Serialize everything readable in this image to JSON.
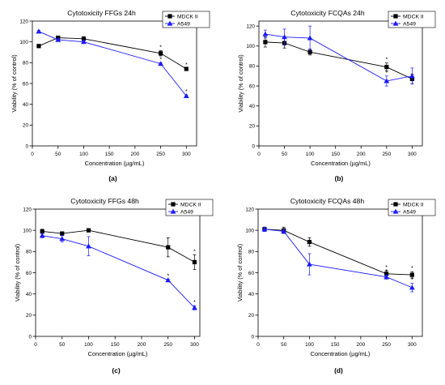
{
  "figure": {
    "panel_labels": [
      "(a)",
      "(b)",
      "(c)",
      "(d)"
    ]
  },
  "chart_data": [
    {
      "type": "line",
      "title": "Cytotoxicity FFGs 24h",
      "xlabel": "Concentration (µg/mL)",
      "ylabel": "Viability (% of control)",
      "xlim": [
        0,
        320
      ],
      "ylim": [
        0,
        120
      ],
      "xticks": [
        0,
        50,
        100,
        150,
        200,
        250,
        300
      ],
      "yticks": [
        0,
        20,
        40,
        60,
        80,
        100,
        120
      ],
      "legend": "top-right",
      "series": [
        {
          "name": "MDCK II",
          "marker": "square",
          "color": "#000000",
          "x": [
            12.5,
            50,
            100,
            250,
            300
          ],
          "y": [
            96,
            104,
            103,
            89,
            74
          ],
          "err": [
            1,
            1.5,
            2,
            2.5,
            1
          ],
          "annot": [
            "",
            "",
            "",
            "*",
            "*"
          ]
        },
        {
          "name": "A549",
          "marker": "triangle",
          "color": "#1a1aff",
          "x": [
            12.5,
            50,
            100,
            250,
            300
          ],
          "y": [
            110,
            102,
            100,
            79,
            48
          ],
          "err": [
            1,
            1,
            1.5,
            1,
            1
          ],
          "annot": [
            "",
            "",
            "",
            "*",
            "*"
          ]
        }
      ]
    },
    {
      "type": "line",
      "title": "Cytotoxicity FCQAs 24h",
      "xlabel": "Concentration (µg/mL)",
      "ylabel": "Viability (% of control)",
      "xlim": [
        0,
        320
      ],
      "ylim": [
        0,
        125
      ],
      "xticks": [
        0,
        50,
        100,
        150,
        200,
        250,
        300
      ],
      "yticks": [
        0,
        20,
        40,
        60,
        80,
        100,
        120
      ],
      "legend": "top-right",
      "series": [
        {
          "name": "MDCK II",
          "marker": "square",
          "color": "#000000",
          "x": [
            12.5,
            50,
            100,
            250,
            300
          ],
          "y": [
            104,
            103,
            94,
            79,
            67
          ],
          "err": [
            5,
            5,
            3,
            4,
            5
          ],
          "annot": [
            "",
            "",
            "",
            "*",
            ""
          ]
        },
        {
          "name": "A549",
          "marker": "triangle",
          "color": "#1a1aff",
          "x": [
            12.5,
            50,
            100,
            250,
            300
          ],
          "y": [
            112,
            109,
            108,
            65,
            70
          ],
          "err": [
            4,
            8,
            12,
            5,
            8
          ],
          "annot": [
            "",
            "",
            "",
            "*",
            ""
          ]
        }
      ]
    },
    {
      "type": "line",
      "title": "Cytotoxicity FFGs 48h",
      "xlabel": "Concentration (µg/mL)",
      "ylabel": "Viability (% of control)",
      "xlim": [
        0,
        310
      ],
      "ylim": [
        0,
        120
      ],
      "xticks": [
        0,
        50,
        100,
        150,
        200,
        250,
        300
      ],
      "yticks": [
        0,
        20,
        40,
        60,
        80,
        100,
        120
      ],
      "legend": "top-right",
      "series": [
        {
          "name": "MDCK II",
          "marker": "square",
          "color": "#000000",
          "x": [
            12.5,
            50,
            100,
            250,
            300
          ],
          "y": [
            99,
            97,
            100,
            84,
            70
          ],
          "err": [
            2,
            1,
            1,
            9,
            7
          ],
          "annot": [
            "",
            "",
            "",
            "",
            "*"
          ]
        },
        {
          "name": "A549",
          "marker": "triangle",
          "color": "#1a1aff",
          "x": [
            12.5,
            50,
            100,
            250,
            300
          ],
          "y": [
            95,
            92,
            85,
            53,
            27
          ],
          "err": [
            2,
            3,
            9,
            1,
            2
          ],
          "annot": [
            "",
            "",
            "",
            "*",
            "*"
          ]
        }
      ]
    },
    {
      "type": "line",
      "title": "Cytotoxicity FCQAs 48h",
      "xlabel": "Concentration (µg/mL)",
      "ylabel": "Viability (% of control)",
      "xlim": [
        0,
        320
      ],
      "ylim": [
        0,
        120
      ],
      "xticks": [
        0,
        50,
        100,
        150,
        200,
        250,
        300
      ],
      "yticks": [
        0,
        20,
        40,
        60,
        80,
        100,
        120
      ],
      "legend": "top-right",
      "series": [
        {
          "name": "MDCK II",
          "marker": "square",
          "color": "#000000",
          "x": [
            12.5,
            50,
            100,
            250,
            300
          ],
          "y": [
            101,
            100,
            89,
            59,
            58
          ],
          "err": [
            2,
            3,
            4,
            3,
            3
          ],
          "annot": [
            "",
            "",
            "",
            "*",
            "*"
          ]
        },
        {
          "name": "A549",
          "marker": "triangle",
          "color": "#1a1aff",
          "x": [
            12.5,
            50,
            100,
            250,
            300
          ],
          "y": [
            101,
            99,
            68,
            56,
            46
          ],
          "err": [
            2,
            2,
            10,
            2,
            4
          ],
          "annot": [
            "",
            "",
            "",
            "*",
            "*"
          ]
        }
      ]
    }
  ]
}
